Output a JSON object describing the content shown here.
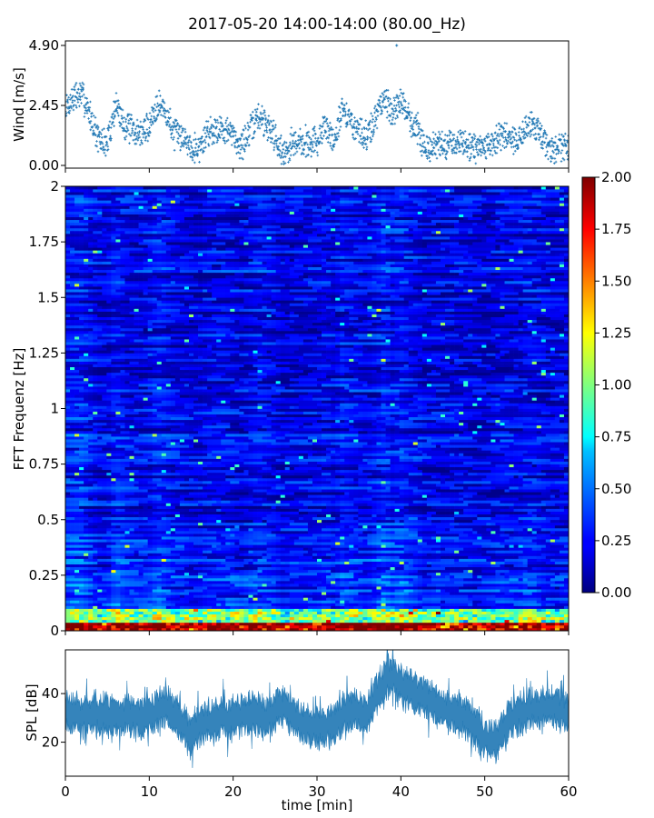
{
  "figure": {
    "title": "2017-05-20 14:00-14:00 (80.00_Hz)"
  },
  "chart_data": [
    {
      "type": "scatter",
      "name": "wind",
      "ylabel": "Wind [m/s]",
      "xlim": [
        0,
        60
      ],
      "ylim": [
        0,
        4.9
      ],
      "yticks": [
        "0.00",
        "2.45",
        "4.90"
      ],
      "marker_color": "#1f77b4",
      "profile": {
        "t": [
          0,
          1,
          2,
          3,
          4,
          5,
          6,
          7,
          8,
          9,
          10,
          11,
          12,
          13,
          14,
          15,
          16,
          17,
          18,
          19,
          20,
          21,
          22,
          23,
          24,
          25,
          26,
          27,
          28,
          29,
          30,
          31,
          32,
          33,
          34,
          35,
          36,
          37,
          38,
          39,
          40,
          41,
          42,
          43,
          44,
          45,
          46,
          47,
          48,
          49,
          50,
          51,
          52,
          53,
          54,
          55,
          56,
          57,
          58,
          59,
          60
        ],
        "wind": [
          2.3,
          2.8,
          2.9,
          2.0,
          1.0,
          0.9,
          2.5,
          1.7,
          1.4,
          1.3,
          1.6,
          2.6,
          2.1,
          1.3,
          1.2,
          0.8,
          0.7,
          1.4,
          1.5,
          1.5,
          1.2,
          0.8,
          1.4,
          2.0,
          1.7,
          1.2,
          0.4,
          0.9,
          0.9,
          1.0,
          1.0,
          1.6,
          1.0,
          2.3,
          1.8,
          1.4,
          1.1,
          2.0,
          2.9,
          2.1,
          2.6,
          1.9,
          1.5,
          0.6,
          0.9,
          0.8,
          0.9,
          0.9,
          0.9,
          0.6,
          0.7,
          0.9,
          1.3,
          1.0,
          1.0,
          1.6,
          1.6,
          1.1,
          0.6,
          0.8,
          0.8
        ]
      },
      "peak": {
        "t": 39.5,
        "wind": 4.9
      }
    },
    {
      "type": "heatmap",
      "name": "spectrogram",
      "ylabel": "FFT Frequenz [Hz]",
      "xlim": [
        0,
        60
      ],
      "ylim": [
        0,
        2
      ],
      "yticks": [
        "0",
        "0.25",
        "0.5",
        "0.75",
        "1",
        "1.25",
        "1.5",
        "1.75",
        "2"
      ],
      "colormap": "jet",
      "clim": [
        0,
        2
      ],
      "colorbar_ticks": [
        "0.00",
        "0.25",
        "0.50",
        "0.75",
        "1.00",
        "1.25",
        "1.50",
        "1.75",
        "2.00"
      ],
      "background_level": 0.22,
      "low_band_hz": 0.1,
      "strong_band_hz": 0.04,
      "strong_bursts": [
        {
          "t_start": 0,
          "t_end": 1,
          "level": 1.9
        },
        {
          "t_start": 36.5,
          "t_end": 40.5,
          "level": 2.0
        },
        {
          "t_start": 31,
          "t_end": 33,
          "level": 1.9
        },
        {
          "t_start": 10,
          "t_end": 12,
          "level": 1.8
        }
      ]
    },
    {
      "type": "line",
      "name": "spl",
      "ylabel": "SPL [dB]",
      "xlabel": "time [min]",
      "xlim": [
        0,
        60
      ],
      "ylim": [
        6,
        58
      ],
      "yticks": [
        "20",
        "40"
      ],
      "xticks": [
        "0",
        "10",
        "20",
        "30",
        "40",
        "50",
        "60"
      ],
      "line_color": "#1f77b4",
      "profile": {
        "t": [
          0,
          2,
          4,
          6,
          8,
          10,
          12,
          14,
          15,
          16,
          18,
          20,
          22,
          24,
          26,
          28,
          30,
          32,
          34,
          36,
          38,
          39,
          40,
          42,
          44,
          46,
          48,
          50,
          51,
          52,
          54,
          56,
          58,
          60
        ],
        "spl": [
          33,
          31,
          32,
          31,
          30,
          31,
          34,
          28,
          22,
          27,
          30,
          30,
          32,
          30,
          35,
          28,
          26,
          28,
          33,
          32,
          45,
          48,
          43,
          40,
          35,
          32,
          30,
          22,
          20,
          24,
          32,
          34,
          35,
          31
        ]
      }
    }
  ]
}
